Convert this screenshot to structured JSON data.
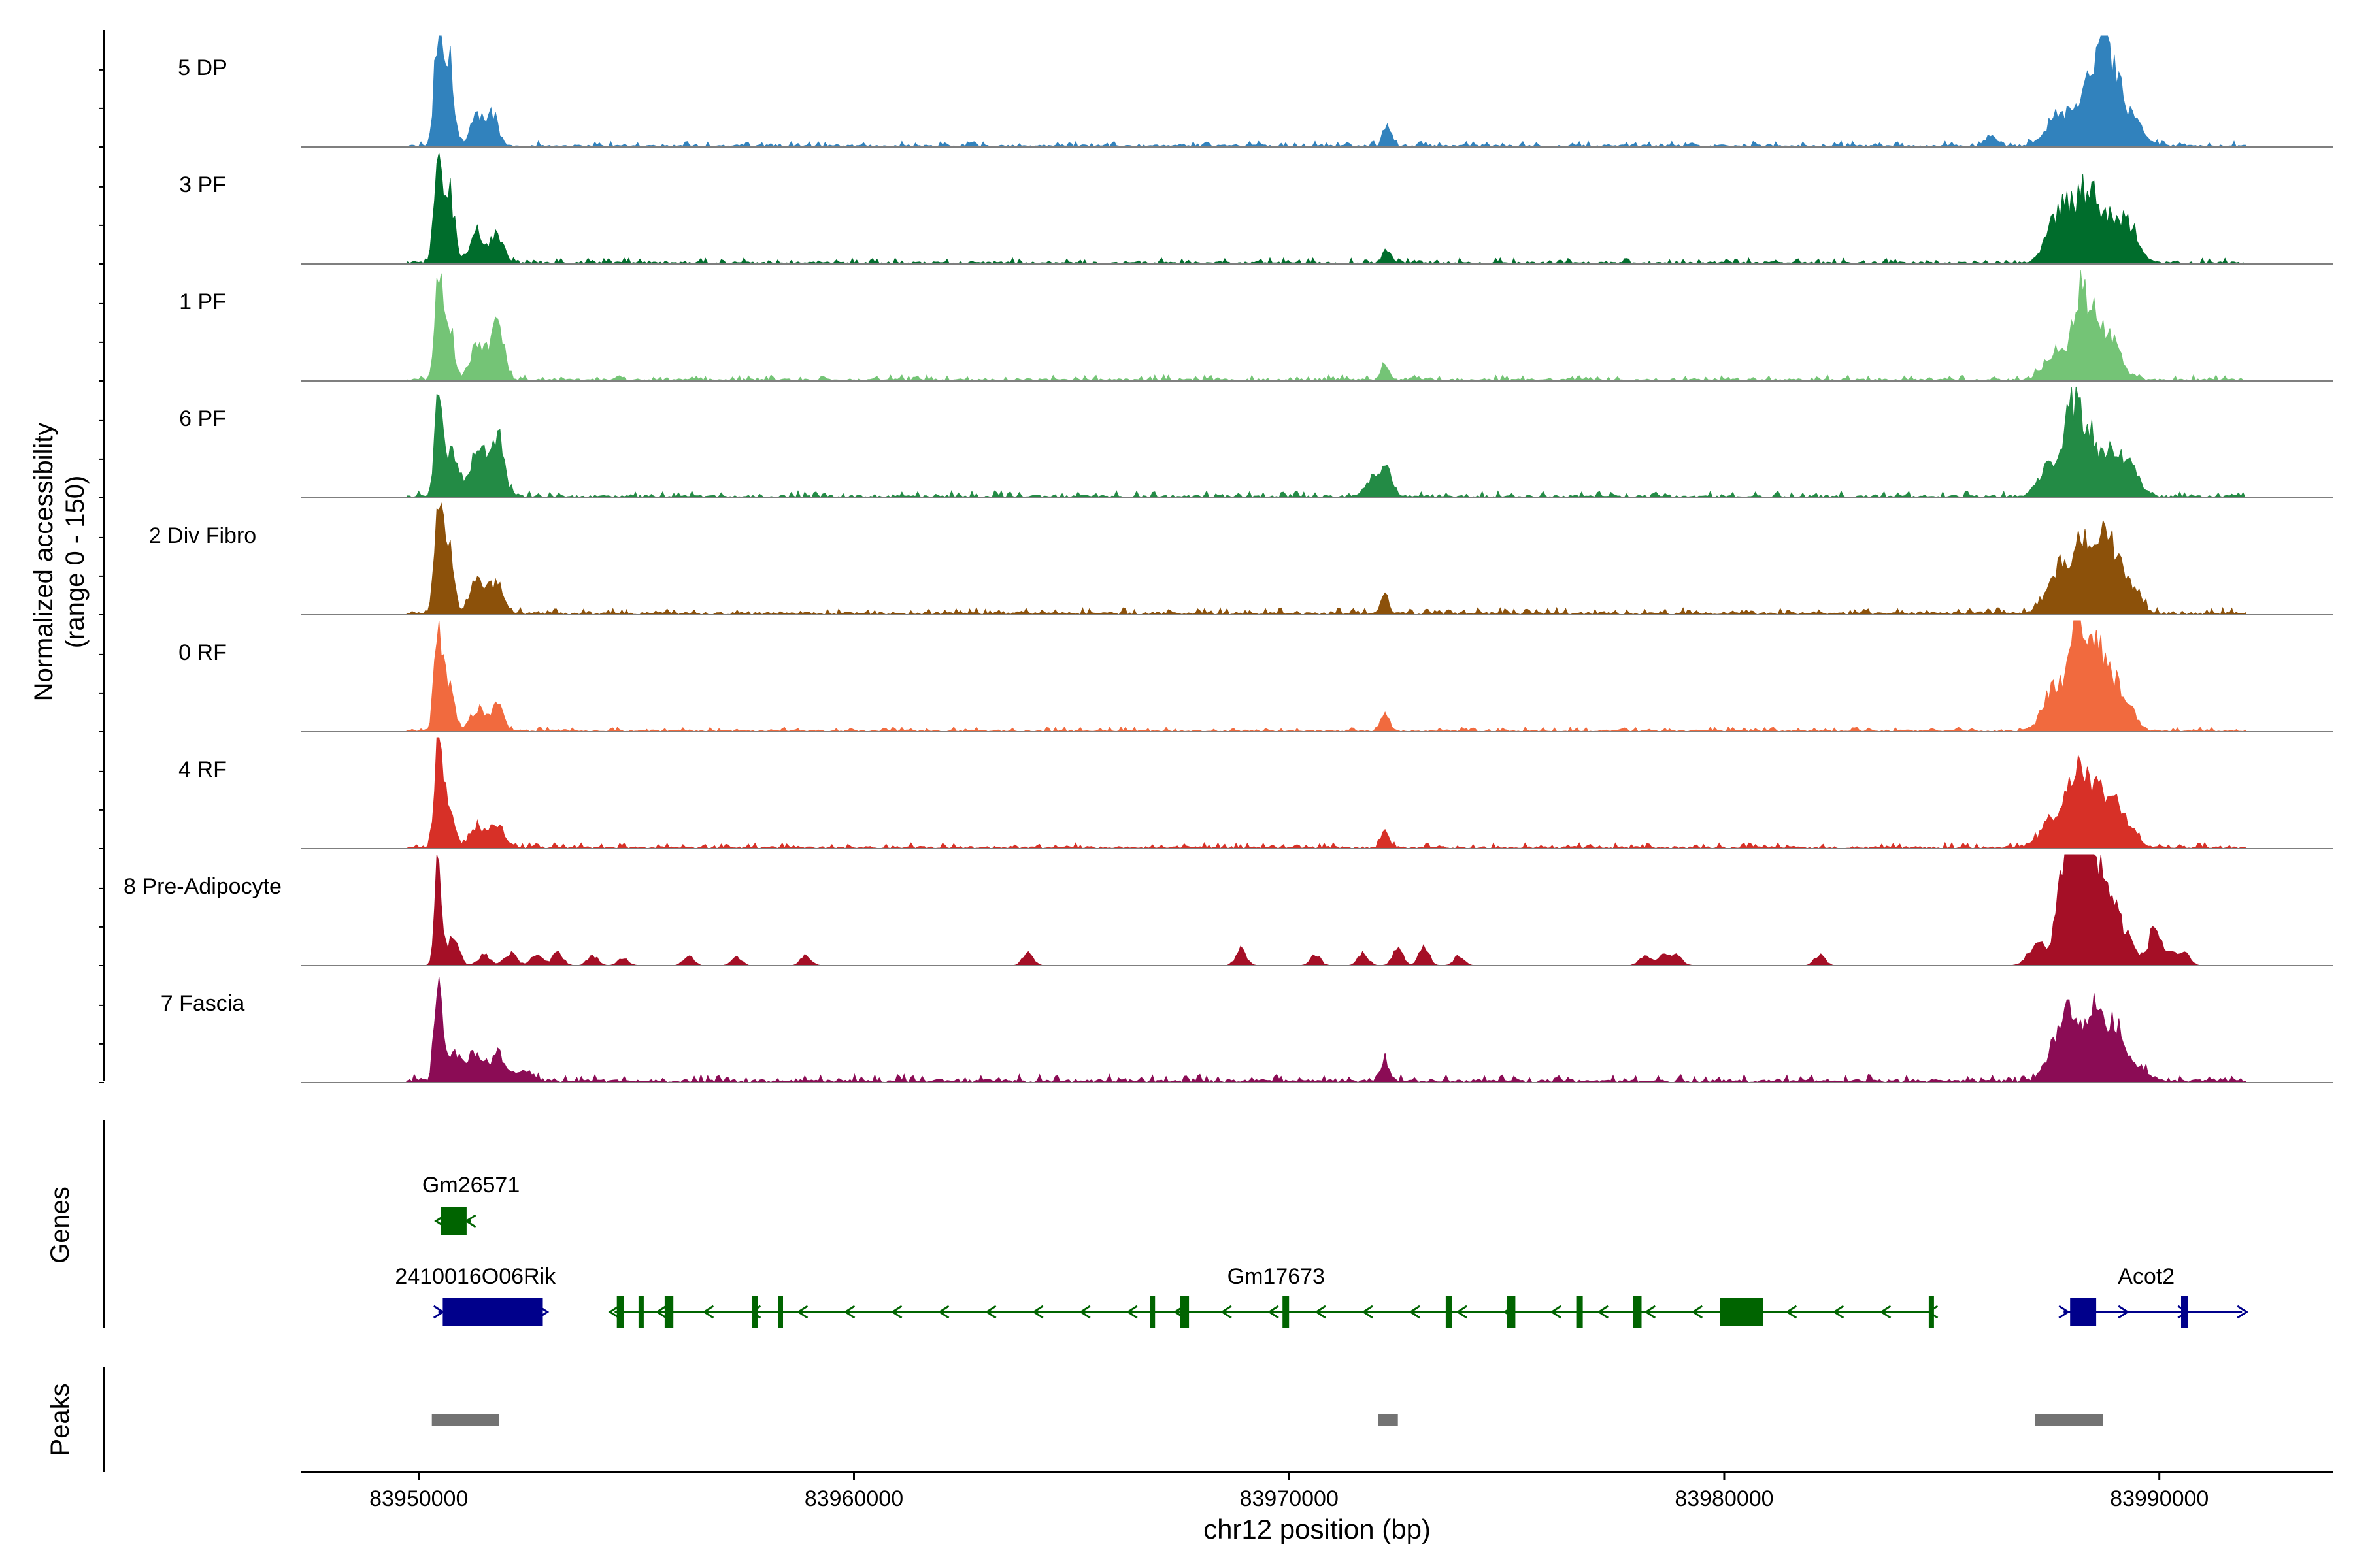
{
  "chart_data": {
    "type": "area",
    "title": "",
    "ylabel_line1": "Normalized accessibility",
    "ylabel_line2": "(range 0 - 150)",
    "xlabel": "chr12 position (bp)",
    "xlim": [
      83947300,
      83994000
    ],
    "ylim": [
      0,
      150
    ],
    "xticks": [
      83950000,
      83960000,
      83970000,
      83980000,
      83990000
    ],
    "xtick_labels": [
      "83950000",
      "83960000",
      "83970000",
      "83980000",
      "83990000"
    ],
    "series": [
      {
        "name": "5 DP",
        "color": "#3182bd",
        "peaks": [
          [
            83950450,
            150,
            90
          ],
          [
            83950700,
            110,
            110
          ],
          [
            83951350,
            38,
            150
          ],
          [
            83951700,
            42,
            130
          ],
          [
            83972250,
            28,
            90
          ],
          [
            83987700,
            40,
            300
          ],
          [
            83988350,
            60,
            260
          ],
          [
            83988650,
            95,
            170
          ],
          [
            83988950,
            78,
            170
          ],
          [
            83989350,
            40,
            240
          ],
          [
            83986150,
            12,
            150
          ],
          [
            83993000,
            0,
            100
          ]
        ],
        "noise": 5
      },
      {
        "name": "3 PF",
        "color": "#006d2c",
        "peaks": [
          [
            83950450,
            150,
            90
          ],
          [
            83950700,
            95,
            110
          ],
          [
            83951350,
            38,
            160
          ],
          [
            83951800,
            32,
            150
          ],
          [
            83972250,
            20,
            90
          ],
          [
            83987600,
            48,
            230
          ],
          [
            83988000,
            62,
            240
          ],
          [
            83988400,
            80,
            200
          ],
          [
            83988900,
            62,
            220
          ],
          [
            83989350,
            42,
            200
          ]
        ],
        "noise": 5
      },
      {
        "name": "1 PF",
        "color": "#74c476",
        "peaks": [
          [
            83950450,
            130,
            90
          ],
          [
            83950700,
            75,
            110
          ],
          [
            83951350,
            48,
            170
          ],
          [
            83951800,
            80,
            150
          ],
          [
            83972200,
            22,
            90
          ],
          [
            83987600,
            34,
            250
          ],
          [
            83988150,
            100,
            170
          ],
          [
            83988500,
            72,
            200
          ],
          [
            83988900,
            45,
            240
          ]
        ],
        "noise": 5
      },
      {
        "name": "6 PF",
        "color": "#238b45",
        "peaks": [
          [
            83950450,
            130,
            90
          ],
          [
            83950750,
            60,
            150
          ],
          [
            83951350,
            65,
            170
          ],
          [
            83951800,
            80,
            150
          ],
          [
            83971900,
            24,
            140
          ],
          [
            83972250,
            45,
            110
          ],
          [
            83987500,
            40,
            250
          ],
          [
            83988000,
            110,
            190
          ],
          [
            83988400,
            75,
            210
          ],
          [
            83988950,
            60,
            230
          ],
          [
            83989400,
            28,
            200
          ]
        ],
        "noise": 6
      },
      {
        "name": "2 Div Fibro",
        "color": "#8c510a",
        "peaks": [
          [
            83950450,
            150,
            90
          ],
          [
            83950700,
            90,
            110
          ],
          [
            83951350,
            45,
            160
          ],
          [
            83951800,
            42,
            150
          ],
          [
            83972200,
            24,
            90
          ],
          [
            83987700,
            60,
            280
          ],
          [
            83988300,
            82,
            250
          ],
          [
            83988800,
            88,
            220
          ],
          [
            83989300,
            40,
            240
          ]
        ],
        "noise": 6
      },
      {
        "name": "0 RF",
        "color": "#f16a3e",
        "peaks": [
          [
            83950450,
            145,
            90
          ],
          [
            83950700,
            70,
            110
          ],
          [
            83951350,
            30,
            150
          ],
          [
            83951800,
            42,
            120
          ],
          [
            83972200,
            25,
            90
          ],
          [
            83987600,
            60,
            250
          ],
          [
            83988100,
            135,
            170
          ],
          [
            83988500,
            92,
            200
          ],
          [
            83988900,
            62,
            220
          ],
          [
            83989300,
            25,
            200
          ]
        ],
        "noise": 4
      },
      {
        "name": "4 RF",
        "color": "#d73027",
        "peaks": [
          [
            83950450,
            150,
            90
          ],
          [
            83950700,
            60,
            110
          ],
          [
            83951350,
            28,
            160
          ],
          [
            83951800,
            30,
            160
          ],
          [
            83972200,
            22,
            90
          ],
          [
            83987550,
            38,
            260
          ],
          [
            83988050,
            98,
            170
          ],
          [
            83988450,
            72,
            190
          ],
          [
            83988900,
            58,
            230
          ],
          [
            83989300,
            25,
            200
          ]
        ],
        "noise": 5
      },
      {
        "name": "8 Pre-Adipocyte",
        "color": "#a50f26",
        "peaks": [
          [
            83950450,
            150,
            80
          ],
          [
            83950800,
            40,
            120
          ],
          [
            83951500,
            14,
            140
          ],
          [
            83952100,
            16,
            140
          ],
          [
            83952700,
            14,
            140
          ],
          [
            83953200,
            18,
            120
          ],
          [
            83954000,
            14,
            120
          ],
          [
            83954700,
            10,
            120
          ],
          [
            83956200,
            12,
            120
          ],
          [
            83957300,
            12,
            120
          ],
          [
            83958900,
            14,
            120
          ],
          [
            83964000,
            16,
            120
          ],
          [
            83968900,
            22,
            120
          ],
          [
            83970600,
            14,
            120
          ],
          [
            83971700,
            16,
            120
          ],
          [
            83972500,
            22,
            120
          ],
          [
            83973100,
            24,
            120
          ],
          [
            83973900,
            12,
            120
          ],
          [
            83978200,
            14,
            140
          ],
          [
            83978600,
            12,
            140
          ],
          [
            83978900,
            12,
            140
          ],
          [
            83982200,
            14,
            120
          ],
          [
            83987200,
            30,
            200
          ],
          [
            83987800,
            140,
            150
          ],
          [
            83988100,
            112,
            160
          ],
          [
            83988400,
            95,
            180
          ],
          [
            83988800,
            75,
            200
          ],
          [
            83989200,
            40,
            220
          ],
          [
            83989900,
            50,
            150
          ],
          [
            83990300,
            18,
            120
          ],
          [
            83990600,
            14,
            120
          ],
          [
            83988400,
            50,
            300
          ]
        ],
        "noise": 0
      },
      {
        "name": "7 Fascia",
        "color": "#8b0c55",
        "peaks": [
          [
            83950450,
            125,
            90
          ],
          [
            83950800,
            40,
            160
          ],
          [
            83951300,
            40,
            170
          ],
          [
            83951800,
            36,
            170
          ],
          [
            83952400,
            14,
            200
          ],
          [
            83972200,
            24,
            120
          ],
          [
            83987600,
            45,
            220
          ],
          [
            83988000,
            85,
            200
          ],
          [
            83988500,
            86,
            180
          ],
          [
            83988950,
            78,
            200
          ],
          [
            83989500,
            20,
            220
          ]
        ],
        "noise": 7
      }
    ],
    "genes_label": "Genes",
    "peaks_label": "Peaks",
    "genes": [
      {
        "name": "Gm26571",
        "start": 83950500,
        "end": 83951200,
        "strand": "-",
        "color": "#006400",
        "row": 0,
        "exons": [
          [
            83950500,
            83951100
          ]
        ],
        "label_pos": 83951200
      },
      {
        "name": "2410016O06Rik",
        "start": 83950450,
        "end": 83952850,
        "strand": "+",
        "color": "#00008b",
        "row": 1,
        "exons": [
          [
            83950550,
            83952850
          ]
        ],
        "label_pos": 83951300
      },
      {
        "name": "Gm17673",
        "start": 83954500,
        "end": 83984800,
        "strand": "-",
        "color": "#006400",
        "row": 1,
        "exons": [
          [
            83954550,
            83954720
          ],
          [
            83955050,
            83955130
          ],
          [
            83955650,
            83955850
          ],
          [
            83957650,
            83957800
          ],
          [
            83958250,
            83958350
          ],
          [
            83966800,
            83966900
          ],
          [
            83967500,
            83967700
          ],
          [
            83969850,
            83970000
          ],
          [
            83973600,
            83973750
          ],
          [
            83975000,
            83975200
          ],
          [
            83976600,
            83976750
          ],
          [
            83977900,
            83978100
          ],
          [
            83979900,
            83980900
          ],
          [
            83984700,
            83984800
          ]
        ],
        "label_pos": 83969700
      },
      {
        "name": "Acot2",
        "start": 83987800,
        "end": 83991900,
        "strand": "+",
        "color": "#00008b",
        "row": 1,
        "exons": [
          [
            83987950,
            83988550
          ],
          [
            83990500,
            83990650
          ]
        ],
        "label_pos": 83989700
      }
    ],
    "peak_regions": [
      [
        83950300,
        83951850
      ],
      [
        83972050,
        83972500
      ],
      [
        83987150,
        83988700
      ]
    ]
  }
}
